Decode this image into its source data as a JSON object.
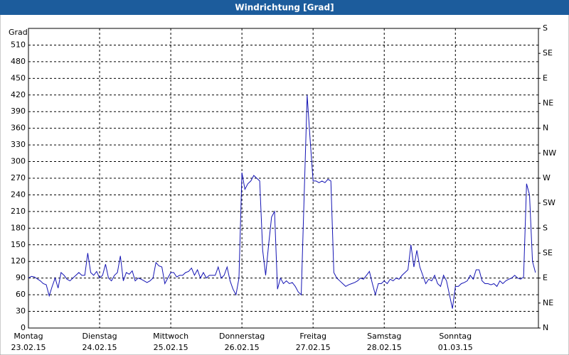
{
  "chart_data": {
    "type": "line",
    "title": "Windrichtung [Grad]",
    "y_label": "Grad",
    "color": "#1414b4",
    "grid": true,
    "xlim": [
      0,
      172
    ],
    "xticks": [
      {
        "value": 0,
        "label": "Montag"
      },
      {
        "value": 24,
        "label": "Dienstag"
      },
      {
        "value": 48,
        "label": "Mittwoch"
      },
      {
        "value": 72,
        "label": "Donnerstag"
      },
      {
        "value": 96,
        "label": "Freitag"
      },
      {
        "value": 120,
        "label": "Samstag"
      },
      {
        "value": 144,
        "label": "Sonntag"
      }
    ],
    "xtick_dates": [
      "23.02.15",
      "24.02.15",
      "25.02.15",
      "26.02.15",
      "27.02.15",
      "28.02.15",
      "01.03.15"
    ],
    "ylim": [
      0,
      540
    ],
    "yticks": [
      0,
      30,
      60,
      90,
      120,
      150,
      180,
      210,
      240,
      270,
      300,
      330,
      360,
      390,
      420,
      450,
      480,
      510
    ],
    "y2lim": [
      0,
      540
    ],
    "y2ticks": [
      {
        "value": 0,
        "label": "N"
      },
      {
        "value": 45,
        "label": "NE"
      },
      {
        "value": 90,
        "label": "E"
      },
      {
        "value": 135,
        "label": "SE"
      },
      {
        "value": 180,
        "label": "S"
      },
      {
        "value": 225,
        "label": "SW"
      },
      {
        "value": 270,
        "label": "W"
      },
      {
        "value": 315,
        "label": "NW"
      },
      {
        "value": 360,
        "label": "N"
      },
      {
        "value": 405,
        "label": "NE"
      },
      {
        "value": 450,
        "label": "E"
      },
      {
        "value": 495,
        "label": "SE"
      },
      {
        "value": 540,
        "label": "S"
      }
    ],
    "x": [
      0,
      1,
      2,
      4,
      5,
      6,
      7,
      8,
      9,
      10,
      11,
      12,
      13,
      14,
      15,
      16,
      17,
      18,
      19,
      20,
      21,
      22,
      23,
      24,
      25,
      26,
      27,
      28,
      29,
      30,
      31,
      32,
      33,
      34,
      35,
      36,
      37,
      38,
      39,
      40,
      41,
      42,
      43,
      44,
      45,
      46,
      47,
      48,
      49,
      50,
      51,
      52,
      53,
      54,
      55,
      56,
      57,
      58,
      59,
      60,
      61,
      62,
      63,
      64,
      65,
      66,
      67,
      68,
      69,
      70,
      71,
      72,
      73,
      74,
      75,
      76,
      77,
      78,
      79,
      80,
      81,
      82,
      83,
      84,
      85,
      86,
      87,
      88,
      89,
      90,
      91,
      92,
      93,
      94,
      95,
      96,
      97,
      98,
      99,
      100,
      101,
      102,
      103,
      104,
      105,
      106,
      107,
      108,
      109,
      110,
      111,
      112,
      113,
      114,
      115,
      116,
      117,
      118,
      119,
      120,
      121,
      122,
      123,
      124,
      125,
      126,
      127,
      128,
      129,
      130,
      131,
      132,
      133,
      134,
      135,
      136,
      137,
      138,
      139,
      140,
      141,
      142,
      143,
      144,
      145,
      146,
      147,
      148,
      149,
      150,
      151,
      152,
      153,
      154,
      155,
      156,
      157,
      158,
      159,
      160,
      161,
      162,
      163,
      164,
      165,
      166,
      167,
      168,
      169,
      170,
      171
    ],
    "values": [
      90,
      93,
      92,
      85,
      80,
      78,
      58,
      75,
      90,
      72,
      100,
      95,
      88,
      85,
      90,
      95,
      100,
      95,
      95,
      135,
      100,
      95,
      102,
      90,
      95,
      115,
      90,
      85,
      95,
      100,
      130,
      85,
      100,
      97,
      103,
      85,
      90,
      88,
      85,
      82,
      85,
      90,
      118,
      112,
      110,
      80,
      90,
      100,
      100,
      92,
      95,
      95,
      100,
      102,
      108,
      95,
      105,
      90,
      100,
      90,
      95,
      95,
      95,
      110,
      90,
      95,
      110,
      85,
      70,
      60,
      90,
      280,
      250,
      260,
      265,
      275,
      270,
      265,
      140,
      95,
      150,
      200,
      210,
      70,
      90,
      80,
      85,
      80,
      82,
      75,
      65,
      60,
      240,
      420,
      340,
      265,
      265,
      262,
      265,
      262,
      268,
      265,
      100,
      90,
      85,
      80,
      75,
      78,
      80,
      82,
      85,
      90,
      88,
      95,
      102,
      80,
      60,
      80,
      80,
      85,
      80,
      88,
      85,
      90,
      88,
      95,
      100,
      105,
      150,
      110,
      140,
      110,
      95,
      80,
      88,
      85,
      95,
      80,
      75,
      95,
      85,
      60,
      35,
      75,
      75,
      80,
      82,
      85,
      95,
      88,
      105,
      105,
      85,
      80,
      80,
      78,
      80,
      75,
      85,
      80,
      85,
      88,
      90,
      95,
      90,
      88,
      92,
      260,
      240,
      120,
      100
    ]
  }
}
